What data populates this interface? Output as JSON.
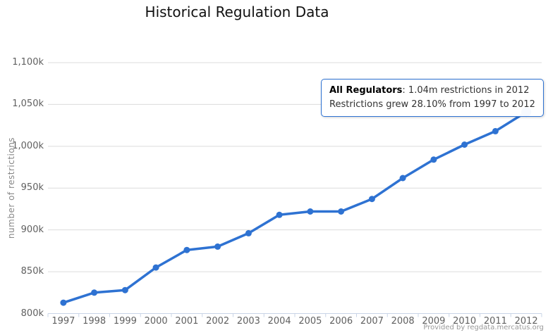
{
  "title": "Historical Regulation Data",
  "y_axis_title": "number of restrictions",
  "credits": "Provided by regdata.mercatus.org",
  "tooltip": {
    "series_label": "All Regulators",
    "line1_rest": ": 1.04m restrictions in 2012",
    "line2": "Restrictions grew 28.10% from 1997 to 2012"
  },
  "colors": {
    "line": "#2e72d2",
    "point": "#2e72d2",
    "tooltip_border": "#2e72d2",
    "grid": "#dcdcdc",
    "axis_line": "#c9d4e6",
    "labels": "#606060",
    "axis_title": "#878787",
    "credits": "#999999",
    "title": "#111111"
  },
  "chart_data": {
    "type": "line",
    "title": "Historical Regulation Data",
    "xlabel": "",
    "ylabel": "number of restrictions",
    "categories": [
      "1997",
      "1998",
      "1999",
      "2000",
      "2001",
      "2002",
      "2003",
      "2004",
      "2005",
      "2006",
      "2007",
      "2008",
      "2009",
      "2010",
      "2011",
      "2012"
    ],
    "series": [
      {
        "name": "All Regulators",
        "values": [
          813000,
          825000,
          828000,
          855000,
          876000,
          880000,
          896000,
          918000,
          922000,
          922000,
          937000,
          962000,
          984000,
          1002000,
          1018000,
          1041000
        ]
      }
    ],
    "ylim": [
      800000,
      1100000
    ],
    "ytick_step": 50000,
    "ytick_labels": [
      "800k",
      "850k",
      "900k",
      "950k",
      "1,000k",
      "1,050k",
      "1,100k"
    ],
    "grid": "horizontal",
    "legend": "none",
    "highlighted_point": {
      "category": "2012",
      "index": 15,
      "value_label": "1.04m"
    }
  }
}
